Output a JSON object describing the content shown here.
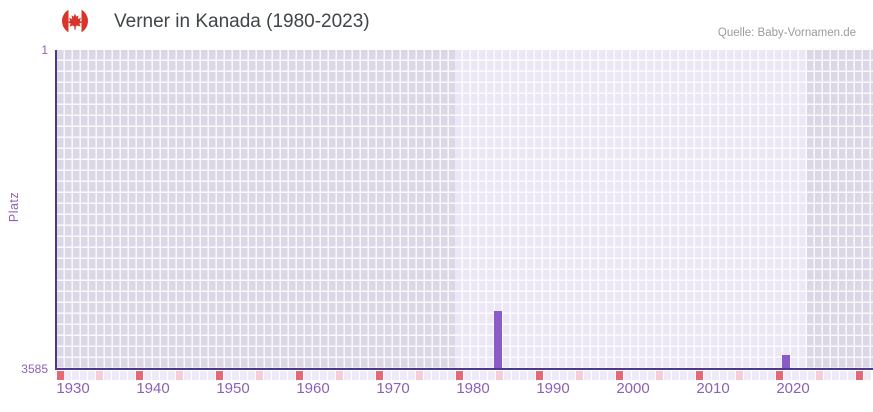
{
  "header": {
    "flag_name": "canada-flag",
    "title": "Verner in Kanada (1980-2023)",
    "source": "Quelle: Baby-Vornamen.de"
  },
  "chart_data": {
    "type": "bar",
    "title": "Verner in Kanada (1980-2023)",
    "xlabel": "",
    "ylabel": "Platz",
    "grid": true,
    "legend": "none",
    "y_axis": {
      "inverted": true,
      "min": 1,
      "max": 3585,
      "tick_labels": [
        "1",
        "3585"
      ]
    },
    "x_axis": {
      "start_year": 1928,
      "end_year": 2030,
      "tick_step_years": 10,
      "tick_labels": [
        "1930",
        "1940",
        "1950",
        "1960",
        "1970",
        "1980",
        "1990",
        "2000",
        "2010",
        "2020"
      ]
    },
    "series": [
      {
        "name": "Platz",
        "points": [
          {
            "year": 1983,
            "rank": 2940
          },
          {
            "year": 2019,
            "rank": 3440
          }
        ]
      }
    ],
    "data_range_band": {
      "from_year": 1978,
      "to_year": 2022
    },
    "axis_marker_strip": {
      "dark_red_years": [
        1928,
        1938,
        1948,
        1958,
        1968,
        1978,
        1988,
        1998,
        2008,
        2018,
        2028
      ],
      "light_pink_years": [
        1933,
        1943,
        1953,
        1963,
        1973,
        1983,
        1993,
        2003,
        2013,
        2023
      ]
    }
  },
  "colors": {
    "title_text": "#404549",
    "source_text": "#9c9c9c",
    "tick_label": "#8a62b6",
    "axis_line": "#4c3a8c",
    "bar": "#8b5cc7",
    "plot_bg_outer": "#dbd7e7",
    "plot_bg_data_range": "#ebe7f5",
    "strip_default": "#eeeaf7",
    "strip_dark_red": "#e26a78",
    "strip_light_pink": "#f6ccd6",
    "flag_red": "#d8342a"
  }
}
